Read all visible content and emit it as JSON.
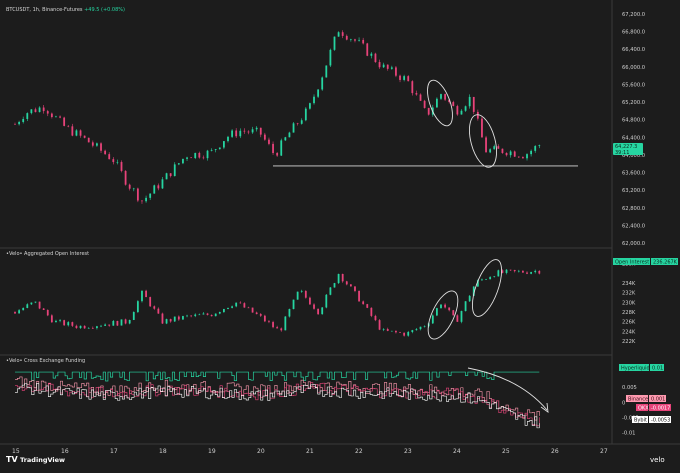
{
  "branding": {
    "tradingview_label": "TradingView",
    "velo_label": "velo"
  },
  "chart_data": [
    {
      "type": "candlestick",
      "title": "BTCUSDT, 1h, Binance-Futures",
      "change": "+49.5 (+0.08%)",
      "y_ticks": [
        "67,200.0",
        "66,800.0",
        "66,400.0",
        "66,000.0",
        "65,600.0",
        "65,200.0",
        "64,800.0",
        "64,400.0",
        "64,000.0",
        "63,600.0",
        "63,200.0",
        "62,800.0",
        "62,400.0",
        "62,000.0"
      ],
      "ylim": [
        62000,
        67200
      ],
      "last_price": "64,227.3",
      "countdown": "39:11",
      "support_line": 63750,
      "up_color": "#26d5a1",
      "down_color": "#e8437a",
      "path_x": [
        15,
        15.2,
        15.6,
        16,
        16.5,
        17,
        17.3,
        17.6,
        18,
        18.5,
        19,
        19.3,
        19.6,
        20,
        20.3,
        20.6,
        21,
        21.3,
        21.6,
        22,
        22.5,
        23,
        23.4,
        23.7,
        24,
        24.3,
        24.6,
        25,
        25.4,
        25.7
      ],
      "path_y": [
        64700,
        64950,
        65100,
        64650,
        64300,
        63900,
        63350,
        62950,
        63400,
        64000,
        64050,
        64400,
        64550,
        64500,
        64000,
        64500,
        65050,
        65900,
        66850,
        66550,
        66000,
        65700,
        64900,
        65400,
        65000,
        65300,
        64100,
        64100,
        64000,
        64227
      ]
    },
    {
      "type": "candlestick",
      "title": "•Velo• Aggregated Open Interest",
      "y_ticks": [
        "238K",
        "234K",
        "232K",
        "230K",
        "228K",
        "226K",
        "224K",
        "222K"
      ],
      "ylim": [
        221000,
        238500
      ],
      "last_label": "Open Interest",
      "last_value": "236.267K",
      "path_x": [
        15,
        15.4,
        15.8,
        16.3,
        16.8,
        17.3,
        17.6,
        18,
        18.5,
        19,
        19.5,
        20,
        20.4,
        20.8,
        21.2,
        21.6,
        22,
        22.5,
        23,
        23.4,
        23.7,
        24,
        24.4,
        24.8,
        25.2,
        25.7
      ],
      "path_y": [
        228000,
        230000,
        226000,
        225000,
        225500,
        226000,
        232000,
        226000,
        227000,
        227500,
        230000,
        227000,
        224000,
        232500,
        228000,
        236000,
        231000,
        224000,
        223500,
        225500,
        230000,
        226000,
        234000,
        236000,
        236200,
        236500
      ]
    },
    {
      "type": "line",
      "title": "•Velo• Cross Exchange Funding",
      "y_ticks": [
        "0.005",
        "0",
        "-0.005",
        "-0.01"
      ],
      "ylim": [
        -0.0115,
        0.012
      ],
      "series": [
        {
          "name": "Hyperliquid",
          "value": "0.01",
          "color": "#26d5a1"
        },
        {
          "name": "Binance",
          "value": "0.001",
          "color": "#ff9ab0"
        },
        {
          "name": "OKX",
          "value": "-0.0017",
          "color": "#e8437a"
        },
        {
          "name": "Bybit",
          "value": "-0.0053",
          "color": "#ffffff"
        }
      ]
    }
  ],
  "x_axis": {
    "ticks": [
      "15",
      "16",
      "17",
      "18",
      "19",
      "20",
      "21",
      "22",
      "23",
      "24",
      "25",
      "26",
      "27"
    ]
  }
}
